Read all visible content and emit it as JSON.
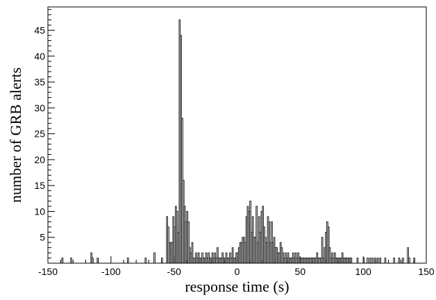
{
  "chart_data": {
    "type": "bar",
    "title": "",
    "xlabel": "response time (s)",
    "ylabel": "number of GRB alerts",
    "xlim": [
      -150,
      150
    ],
    "ylim": [
      0,
      49.5
    ],
    "bin_width": 1,
    "x_ticks": [
      -150,
      -100,
      -50,
      0,
      50,
      100,
      150
    ],
    "x_tick_labels": [
      "-150",
      "-100",
      "-50",
      "0",
      "50",
      "100",
      "150"
    ],
    "y_ticks": [
      5,
      10,
      15,
      20,
      25,
      30,
      35,
      40,
      45
    ],
    "y_tick_labels": [
      "5",
      "10",
      "15",
      "20",
      "25",
      "30",
      "35",
      "40",
      "45"
    ],
    "grid": false,
    "fill_color": "#d3d3d3",
    "line_color": "#000000",
    "bins": [
      [
        -139,
        1
      ],
      [
        -132,
        1
      ],
      [
        -116,
        2
      ],
      [
        -115,
        1
      ],
      [
        -111,
        1
      ],
      [
        -87,
        1
      ],
      [
        -73,
        1
      ],
      [
        -66,
        2
      ],
      [
        -60,
        1
      ],
      [
        -56,
        9
      ],
      [
        -55,
        7
      ],
      [
        -54,
        4
      ],
      [
        -53,
        4
      ],
      [
        -52,
        4
      ],
      [
        -51,
        9
      ],
      [
        -50,
        7
      ],
      [
        -49,
        11
      ],
      [
        -48,
        10
      ],
      [
        -47,
        6
      ],
      [
        -46,
        47
      ],
      [
        -45,
        44
      ],
      [
        -44,
        28
      ],
      [
        -43,
        16
      ],
      [
        -42,
        11
      ],
      [
        -41,
        8
      ],
      [
        -40,
        10
      ],
      [
        -39,
        8
      ],
      [
        -38,
        3
      ],
      [
        -37,
        2
      ],
      [
        -36,
        4
      ],
      [
        -35,
        1
      ],
      [
        -34,
        1
      ],
      [
        -33,
        2
      ],
      [
        -32,
        1
      ],
      [
        -31,
        2
      ],
      [
        -30,
        1
      ],
      [
        -29,
        1
      ],
      [
        -28,
        2
      ],
      [
        -27,
        1
      ],
      [
        -26,
        1
      ],
      [
        -25,
        2
      ],
      [
        -24,
        1
      ],
      [
        -23,
        2
      ],
      [
        -22,
        1
      ],
      [
        -21,
        1
      ],
      [
        -20,
        2
      ],
      [
        -19,
        1
      ],
      [
        -18,
        2
      ],
      [
        -17,
        1
      ],
      [
        -16,
        3
      ],
      [
        -15,
        1
      ],
      [
        -14,
        1
      ],
      [
        -13,
        1
      ],
      [
        -12,
        2
      ],
      [
        -11,
        1
      ],
      [
        -10,
        1
      ],
      [
        -9,
        2
      ],
      [
        -8,
        1
      ],
      [
        -7,
        1
      ],
      [
        -6,
        2
      ],
      [
        -5,
        1
      ],
      [
        -4,
        3
      ],
      [
        -3,
        1
      ],
      [
        -2,
        1
      ],
      [
        -1,
        2
      ],
      [
        0,
        2
      ],
      [
        1,
        3
      ],
      [
        2,
        4
      ],
      [
        3,
        4
      ],
      [
        4,
        5
      ],
      [
        5,
        5
      ],
      [
        6,
        4
      ],
      [
        7,
        9
      ],
      [
        8,
        11
      ],
      [
        9,
        10
      ],
      [
        10,
        12
      ],
      [
        11,
        6
      ],
      [
        12,
        9
      ],
      [
        13,
        5
      ],
      [
        14,
        5
      ],
      [
        15,
        11
      ],
      [
        16,
        4
      ],
      [
        17,
        9
      ],
      [
        18,
        6
      ],
      [
        19,
        10
      ],
      [
        20,
        11
      ],
      [
        21,
        7
      ],
      [
        22,
        5
      ],
      [
        23,
        4
      ],
      [
        24,
        9
      ],
      [
        25,
        8
      ],
      [
        26,
        4
      ],
      [
        27,
        8
      ],
      [
        28,
        4
      ],
      [
        29,
        5
      ],
      [
        30,
        3
      ],
      [
        31,
        3
      ],
      [
        32,
        2
      ],
      [
        33,
        2
      ],
      [
        34,
        4
      ],
      [
        35,
        3
      ],
      [
        36,
        2
      ],
      [
        37,
        1
      ],
      [
        38,
        2
      ],
      [
        39,
        1
      ],
      [
        40,
        2
      ],
      [
        41,
        1
      ],
      [
        42,
        1
      ],
      [
        43,
        1
      ],
      [
        44,
        2
      ],
      [
        45,
        1
      ],
      [
        46,
        2
      ],
      [
        47,
        1
      ],
      [
        48,
        2
      ],
      [
        49,
        1
      ],
      [
        50,
        1
      ],
      [
        51,
        1
      ],
      [
        52,
        1
      ],
      [
        53,
        1
      ],
      [
        54,
        1
      ],
      [
        55,
        1
      ],
      [
        56,
        1
      ],
      [
        57,
        1
      ],
      [
        58,
        1
      ],
      [
        59,
        1
      ],
      [
        60,
        1
      ],
      [
        61,
        1
      ],
      [
        62,
        1
      ],
      [
        63,
        2
      ],
      [
        64,
        1
      ],
      [
        65,
        1
      ],
      [
        66,
        1
      ],
      [
        67,
        5
      ],
      [
        68,
        1
      ],
      [
        69,
        3
      ],
      [
        70,
        6
      ],
      [
        71,
        8
      ],
      [
        72,
        7
      ],
      [
        73,
        3
      ],
      [
        74,
        1
      ],
      [
        75,
        2
      ],
      [
        76,
        1
      ],
      [
        77,
        2
      ],
      [
        78,
        1
      ],
      [
        79,
        1
      ],
      [
        80,
        1
      ],
      [
        81,
        1
      ],
      [
        82,
        1
      ],
      [
        83,
        2
      ],
      [
        84,
        1
      ],
      [
        85,
        1
      ],
      [
        86,
        1
      ],
      [
        87,
        1
      ],
      [
        88,
        1
      ],
      [
        89,
        1
      ],
      [
        90,
        1
      ],
      [
        95,
        1
      ],
      [
        100,
        1
      ],
      [
        103,
        1
      ],
      [
        105,
        1
      ],
      [
        107,
        1
      ],
      [
        109,
        1
      ],
      [
        111,
        1
      ],
      [
        113,
        1
      ],
      [
        117,
        1
      ],
      [
        124,
        1
      ],
      [
        128,
        1
      ],
      [
        131,
        1
      ],
      [
        135,
        3
      ],
      [
        136,
        1
      ],
      [
        140,
        1
      ]
    ]
  }
}
